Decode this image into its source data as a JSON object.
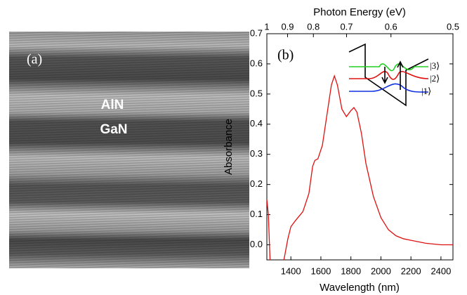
{
  "panel_a": {
    "label": "(a)",
    "layers": [
      "AlN",
      "GaN"
    ]
  },
  "chart_data": {
    "type": "line",
    "label": "(b)",
    "xlabel": "Wavelength (nm)",
    "x2label": "Photon Energy (eV)",
    "ylabel": "Absorbance",
    "xlim": [
      1240,
      2480
    ],
    "ylim": [
      -0.05,
      0.7
    ],
    "xticks": [
      1400,
      1600,
      1800,
      2000,
      2200,
      2400
    ],
    "x2ticks": [
      {
        "value": 1240,
        "label": "1"
      },
      {
        "value": 1378,
        "label": "0.9"
      },
      {
        "value": 1550,
        "label": "0.8"
      },
      {
        "value": 1771,
        "label": "0.7"
      },
      {
        "value": 2067,
        "label": "0.6"
      },
      {
        "value": 2480,
        "label": "0.5"
      }
    ],
    "yticks": [
      {
        "value": 0,
        "label": "0.0"
      },
      0.1,
      0.2,
      0.3,
      0.4,
      0.5,
      0.6,
      0.7
    ],
    "x": [
      1240,
      1250,
      1262,
      1350,
      1380,
      1400,
      1430,
      1480,
      1520,
      1545,
      1560,
      1580,
      1610,
      1640,
      1670,
      1690,
      1710,
      1740,
      1770,
      1800,
      1820,
      1840,
      1870,
      1900,
      1950,
      2000,
      2050,
      2100,
      2150,
      2200,
      2300,
      2400,
      2480
    ],
    "series": [
      {
        "color": "#e01010",
        "values": [
          0.15,
          0.1,
          -0.06,
          -0.06,
          0.02,
          0.06,
          0.08,
          0.11,
          0.17,
          0.26,
          0.28,
          0.285,
          0.33,
          0.43,
          0.53,
          0.56,
          0.53,
          0.45,
          0.425,
          0.445,
          0.455,
          0.44,
          0.37,
          0.27,
          0.16,
          0.09,
          0.05,
          0.03,
          0.02,
          0.015,
          0.005,
          0.0,
          0.0
        ]
      }
    ],
    "annotations": [
      "|3⟩",
      "|2⟩",
      "|1⟩"
    ]
  }
}
